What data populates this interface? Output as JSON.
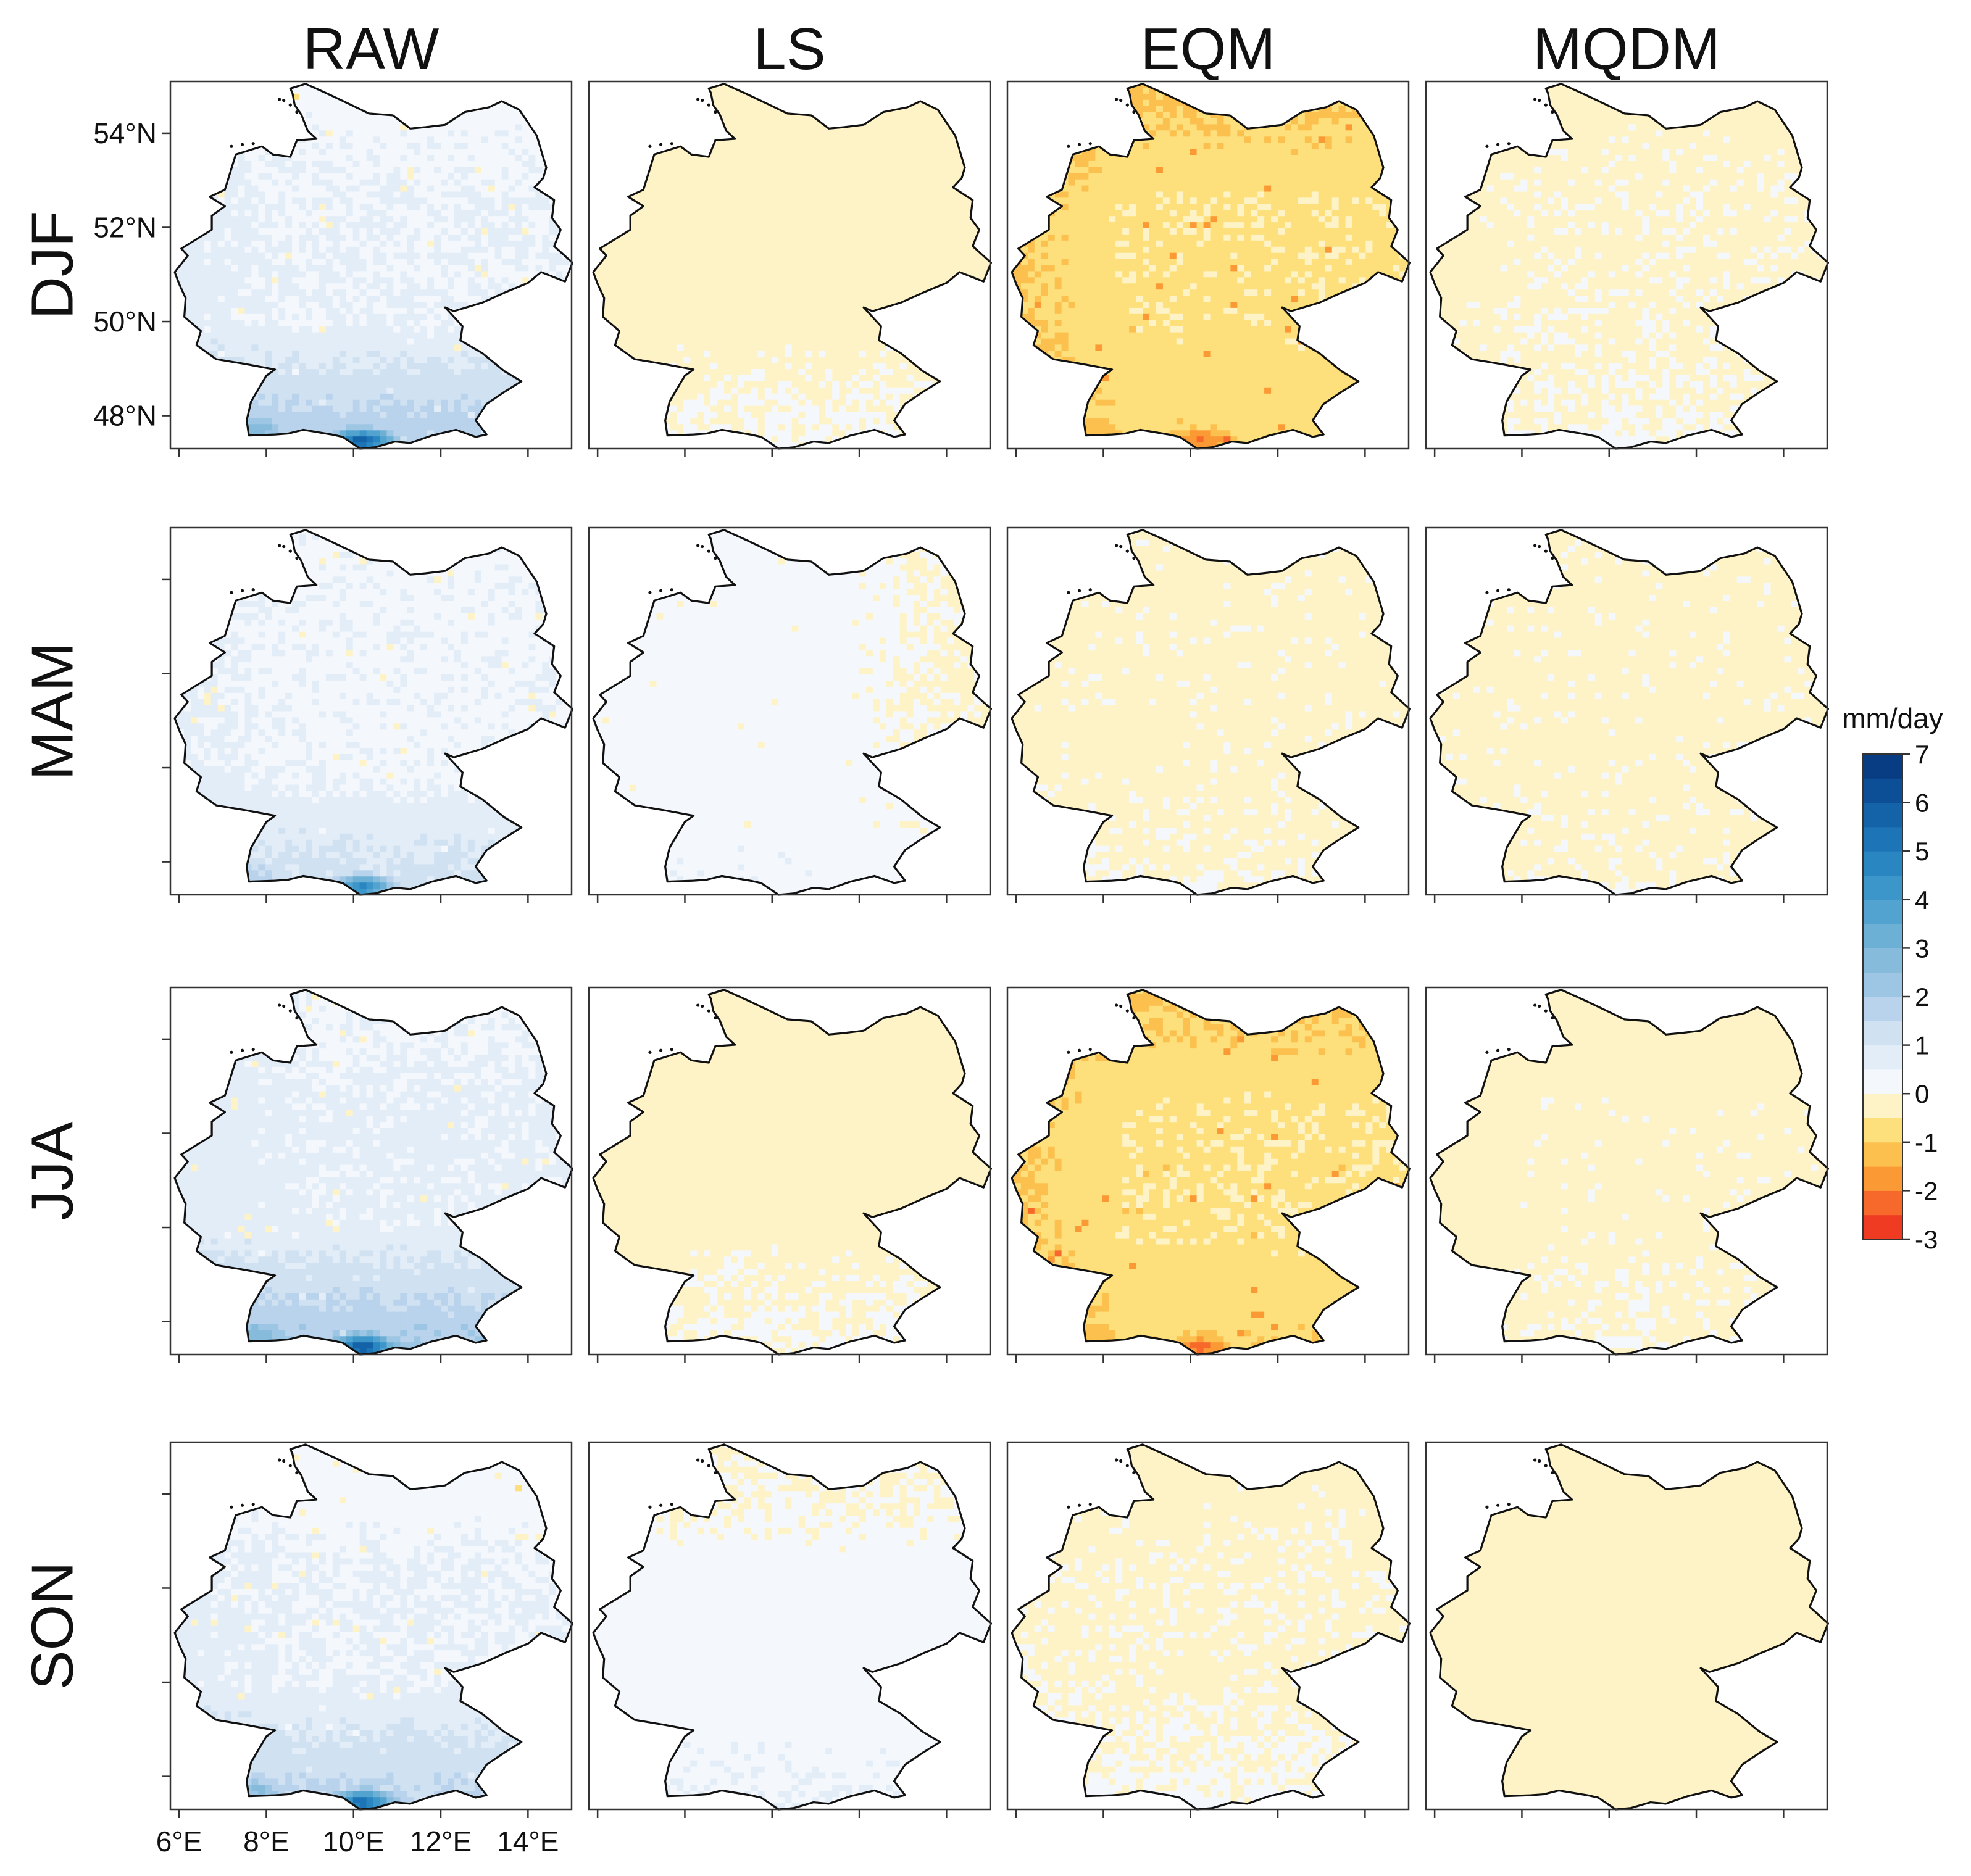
{
  "chart_data": {
    "type": "heatmap",
    "title": "",
    "methods": [
      "RAW",
      "LS",
      "EQM",
      "MQDM"
    ],
    "seasons": [
      "DJF",
      "MAM",
      "JJA",
      "SON"
    ],
    "x_ticks": [
      "6°E",
      "8°E",
      "10°E",
      "12°E",
      "14°E"
    ],
    "y_ticks": [
      "54°N",
      "52°N",
      "50°N",
      "48°N"
    ],
    "xlim": [
      5.8,
      15.0
    ],
    "ylim": [
      47.3,
      55.1
    ],
    "colorbar": {
      "title": "mm/day",
      "min": -3,
      "max": 7,
      "ticks": [
        "7",
        "6",
        "5",
        "4",
        "3",
        "2",
        "1",
        "0",
        "-1",
        "-2",
        "-3"
      ],
      "steps": [
        {
          "from": -3.0,
          "to": -2.5,
          "color": "#ef3b22"
        },
        {
          "from": -2.5,
          "to": -2.0,
          "color": "#f7692b"
        },
        {
          "from": -2.0,
          "to": -1.5,
          "color": "#fb9935"
        },
        {
          "from": -1.5,
          "to": -1.0,
          "color": "#fcc04f"
        },
        {
          "from": -1.0,
          "to": -0.5,
          "color": "#fde07c"
        },
        {
          "from": -0.5,
          "to": 0.0,
          "color": "#fef3c7"
        },
        {
          "from": 0.0,
          "to": 0.5,
          "color": "#f4f8fd"
        },
        {
          "from": 0.5,
          "to": 1.0,
          "color": "#e3edf8"
        },
        {
          "from": 1.0,
          "to": 1.5,
          "color": "#d0e2f2"
        },
        {
          "from": 1.5,
          "to": 2.0,
          "color": "#b9d3ec"
        },
        {
          "from": 2.0,
          "to": 2.5,
          "color": "#9dc6e4"
        },
        {
          "from": 2.5,
          "to": 3.0,
          "color": "#86bbdc"
        },
        {
          "from": 3.0,
          "to": 3.5,
          "color": "#6cb0d6"
        },
        {
          "from": 3.5,
          "to": 4.0,
          "color": "#52a3d0"
        },
        {
          "from": 4.0,
          "to": 4.5,
          "color": "#3c96c9"
        },
        {
          "from": 4.5,
          "to": 5.0,
          "color": "#2a86c1"
        },
        {
          "from": 5.0,
          "to": 5.5,
          "color": "#1d74b6"
        },
        {
          "from": 5.5,
          "to": 6.0,
          "color": "#1462a8"
        },
        {
          "from": 6.0,
          "to": 6.5,
          "color": "#0d4f96"
        },
        {
          "from": 6.5,
          "to": 7.0,
          "color": "#083d84"
        }
      ]
    },
    "panels": [
      {
        "season": "DJF",
        "method": "RAW",
        "base": 0.5,
        "south": 1.5,
        "west": 0.2,
        "east": 0.0,
        "north": -0.2,
        "alpine_peak": 7.0,
        "spots": -0.7
      },
      {
        "season": "DJF",
        "method": "LS",
        "base": -0.2,
        "south": 0.3,
        "west": -0.1,
        "east": 0.0,
        "north": -0.1,
        "alpine_peak": 0.0,
        "spots": 0.0
      },
      {
        "season": "DJF",
        "method": "EQM",
        "base": -0.6,
        "south": -0.3,
        "west": -0.5,
        "east": 0.0,
        "north": -0.5,
        "alpine_peak": -2.5,
        "spots": -1.0
      },
      {
        "season": "DJF",
        "method": "MQDM",
        "base": -0.1,
        "south": 0.1,
        "west": -0.1,
        "east": 0.0,
        "north": -0.1,
        "alpine_peak": 0.2,
        "spots": 0.0
      },
      {
        "season": "MAM",
        "method": "RAW",
        "base": 0.4,
        "south": 0.9,
        "west": 0.2,
        "east": 0.0,
        "north": 0.0,
        "alpine_peak": 5.5,
        "spots": -0.7
      },
      {
        "season": "MAM",
        "method": "LS",
        "base": 0.2,
        "south": 0.2,
        "west": 0.0,
        "east": -0.3,
        "north": 0.0,
        "alpine_peak": 0.3,
        "spots": -0.2
      },
      {
        "season": "MAM",
        "method": "EQM",
        "base": -0.15,
        "south": 0.1,
        "west": 0.0,
        "east": 0.0,
        "north": 0.0,
        "alpine_peak": 0.3,
        "spots": 0.0
      },
      {
        "season": "MAM",
        "method": "MQDM",
        "base": -0.15,
        "south": 0.05,
        "west": 0.0,
        "east": 0.0,
        "north": 0.0,
        "alpine_peak": 0.2,
        "spots": 0.0
      },
      {
        "season": "JJA",
        "method": "RAW",
        "base": 0.6,
        "south": 1.6,
        "west": 0.2,
        "east": 0.0,
        "north": -0.2,
        "alpine_peak": 7.0,
        "spots": -0.7
      },
      {
        "season": "JJA",
        "method": "LS",
        "base": -0.2,
        "south": 0.3,
        "west": -0.1,
        "east": 0.0,
        "north": -0.1,
        "alpine_peak": 0.0,
        "spots": 0.0
      },
      {
        "season": "JJA",
        "method": "EQM",
        "base": -0.6,
        "south": -0.3,
        "west": -0.5,
        "east": 0.0,
        "north": -0.5,
        "alpine_peak": -2.5,
        "spots": -1.0
      },
      {
        "season": "JJA",
        "method": "MQDM",
        "base": -0.15,
        "south": 0.1,
        "west": -0.1,
        "east": 0.0,
        "north": -0.1,
        "alpine_peak": 0.2,
        "spots": 0.0
      },
      {
        "season": "SON",
        "method": "RAW",
        "base": 0.5,
        "south": 1.2,
        "west": 0.2,
        "east": 0.0,
        "north": -0.4,
        "alpine_peak": 6.5,
        "spots": -0.7
      },
      {
        "season": "SON",
        "method": "LS",
        "base": 0.2,
        "south": 0.3,
        "west": 0.0,
        "east": 0.0,
        "north": -0.3,
        "alpine_peak": 0.5,
        "spots": 0.0
      },
      {
        "season": "SON",
        "method": "EQM",
        "base": -0.1,
        "south": 0.2,
        "west": 0.0,
        "east": 0.0,
        "north": -0.1,
        "alpine_peak": 0.3,
        "spots": 0.0
      },
      {
        "season": "SON",
        "method": "MQDM",
        "base": -0.2,
        "south": 0.0,
        "west": 0.0,
        "east": 0.0,
        "north": 0.0,
        "alpine_peak": -0.1,
        "spots": 0.0
      }
    ]
  }
}
